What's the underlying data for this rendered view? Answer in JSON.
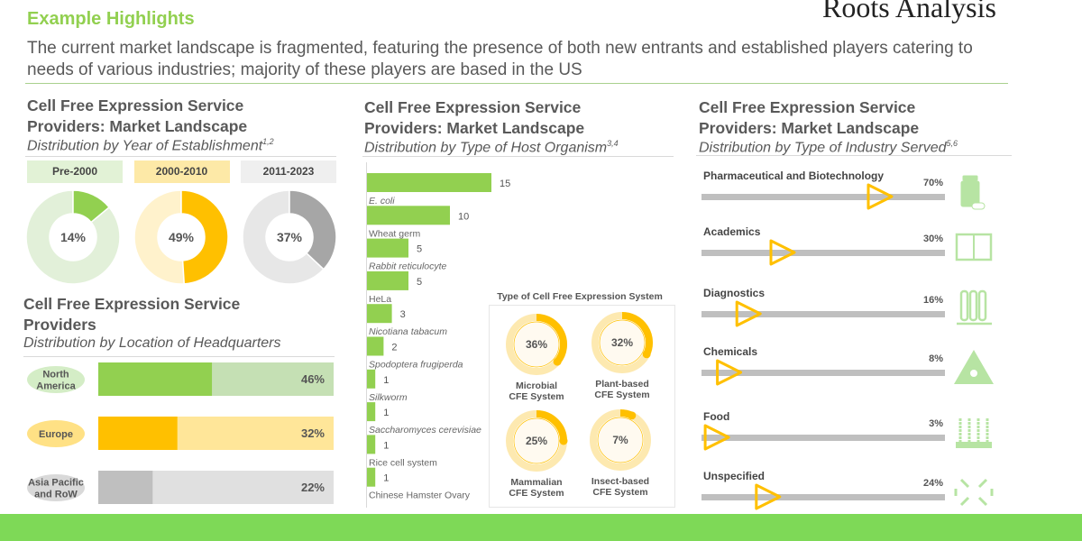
{
  "header": {
    "title": "Example Highlights",
    "subtitle": "The current market landscape is fragmented, featuring the presence of both new entrants and established players catering to needs of various industries; majority of these players are based in the US",
    "logo": "Roots Analysis"
  },
  "colors": {
    "green": "#92d050",
    "light_green": "#c5e0b4",
    "yellow": "#ffc000",
    "light_yellow": "#ffe699",
    "gray": "#a6a6a6",
    "light_gray": "#e7e7e7",
    "footer": "#7ed957"
  },
  "panels": {
    "year": {
      "title1": "Cell Free Expression Service",
      "title2": "Providers: Market Landscape",
      "subtitle": "Distribution by Year of Establishment",
      "sup": "1,2"
    },
    "location": {
      "title1": "Cell Free Expression Service",
      "title2": "Providers",
      "subtitle": "Distribution by Location of Headquarters"
    },
    "host": {
      "title1": "Cell Free Expression Service",
      "title2": "Providers: Market Landscape",
      "subtitle": "Distribution by Type of Host Organism",
      "sup": "3,4"
    },
    "industry": {
      "title1": "Cell Free Expression Service",
      "title2": "Providers: Market Landscape",
      "subtitle": "Distribution by Type of Industry Served",
      "sup": "5,6"
    }
  },
  "chart_data": [
    {
      "type": "pie",
      "id": "year",
      "categories": [
        "Pre-2000",
        "2000-2010",
        "2011-2023"
      ],
      "values": [
        14,
        49,
        37
      ],
      "labels": [
        "14%",
        "49%",
        "37%"
      ]
    },
    {
      "type": "bar",
      "id": "location",
      "orientation": "horizontal",
      "categories": [
        "North America",
        "Europe",
        "Asia Pacific and RoW"
      ],
      "values": [
        46,
        32,
        22
      ],
      "labels": [
        "46%",
        "32%",
        "22%"
      ],
      "icons": [
        "north-america-map-icon",
        "europe-map-icon",
        "asia-map-icon"
      ]
    },
    {
      "type": "bar",
      "id": "host",
      "orientation": "horizontal",
      "categories": [
        "E. coli",
        "Wheat germ",
        "Rabbit reticulocyte",
        "HeLa",
        "Nicotiana tabacum",
        "Spodoptera frugiperda",
        "Silkworm",
        "Saccharomyces cerevisiae",
        "Rice cell system",
        "Chinese Hamster Ovary"
      ],
      "italic": [
        true,
        false,
        true,
        false,
        true,
        true,
        true,
        true,
        false,
        false
      ],
      "values": [
        15,
        10,
        5,
        5,
        3,
        2,
        1,
        1,
        1,
        1
      ]
    },
    {
      "type": "pie",
      "id": "cfe",
      "title": "Type of Cell Free Expression System",
      "categories": [
        "Microbial CFE System",
        "Plant-based CFE System",
        "Mammalian CFE System",
        "Insect-based CFE System"
      ],
      "values": [
        36,
        32,
        25,
        7
      ],
      "labels": [
        "36%",
        "32%",
        "25%",
        "7%"
      ]
    },
    {
      "type": "bar",
      "id": "industry",
      "categories": [
        "Pharmaceutical and Biotechnology",
        "Academics",
        "Diagnostics",
        "Chemicals",
        "Food",
        "Unspecified"
      ],
      "values": [
        70,
        30,
        16,
        8,
        3,
        24
      ],
      "labels": [
        "70%",
        "30%",
        "16%",
        "8%",
        "3%",
        "24%"
      ],
      "icons": [
        "medicine-bottle-icon",
        "book-icon",
        "test-tubes-icon",
        "radiation-icon",
        "wheat-icon",
        "other-icon"
      ]
    }
  ]
}
